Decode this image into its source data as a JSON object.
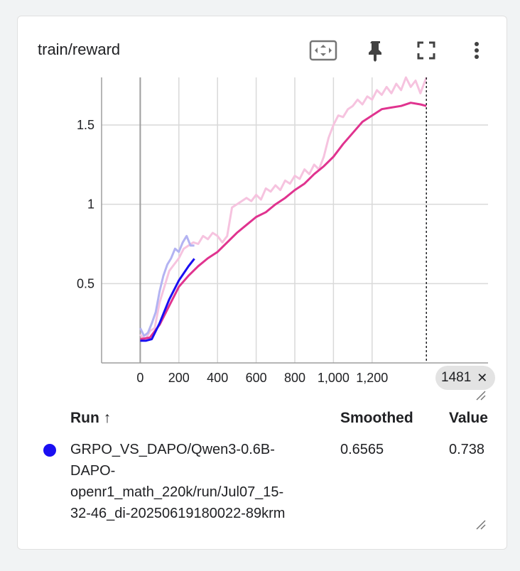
{
  "card": {
    "title": "train/reward",
    "icons": [
      "fit-domain-icon",
      "pin-icon",
      "fullscreen-icon",
      "more-vert-icon"
    ]
  },
  "chart_data": {
    "type": "line",
    "title": "train/reward",
    "xlabel": "",
    "ylabel": "",
    "xlim": [
      -200,
      1800
    ],
    "ylim": [
      0,
      1.8
    ],
    "x_ticks": [
      "0",
      "200",
      "400",
      "600",
      "800",
      "1,000",
      "1,200"
    ],
    "y_ticks": [
      "0.5",
      "1",
      "1.5"
    ],
    "grid": true,
    "hover_step": 1481,
    "series": [
      {
        "name": "GRPO_VS_DAPO/Qwen3-0.6B-DAPO-openr1_math_220k/run/Jul07_15-32-46_di-20250619180022-89krm",
        "color": "#1a0ff2",
        "raw_color": "#b3b3f2",
        "smoothed": [
          [
            0,
            0.14
          ],
          [
            30,
            0.14
          ],
          [
            60,
            0.15
          ],
          [
            100,
            0.25
          ],
          [
            150,
            0.4
          ],
          [
            200,
            0.52
          ],
          [
            250,
            0.61
          ],
          [
            280,
            0.657
          ]
        ],
        "raw": [
          [
            0,
            0.22
          ],
          [
            20,
            0.17
          ],
          [
            40,
            0.19
          ],
          [
            60,
            0.25
          ],
          [
            80,
            0.32
          ],
          [
            100,
            0.45
          ],
          [
            120,
            0.55
          ],
          [
            140,
            0.62
          ],
          [
            160,
            0.66
          ],
          [
            180,
            0.72
          ],
          [
            200,
            0.7
          ],
          [
            220,
            0.76
          ],
          [
            240,
            0.8
          ],
          [
            260,
            0.74
          ],
          [
            280,
            0.74
          ]
        ]
      },
      {
        "name": "",
        "color": "#e0338f",
        "raw_color": "#f6c3df",
        "smoothed": [
          [
            0,
            0.15
          ],
          [
            50,
            0.16
          ],
          [
            100,
            0.24
          ],
          [
            150,
            0.36
          ],
          [
            200,
            0.48
          ],
          [
            250,
            0.55
          ],
          [
            300,
            0.61
          ],
          [
            350,
            0.66
          ],
          [
            400,
            0.7
          ],
          [
            450,
            0.76
          ],
          [
            500,
            0.82
          ],
          [
            550,
            0.87
          ],
          [
            600,
            0.92
          ],
          [
            650,
            0.95
          ],
          [
            700,
            1.0
          ],
          [
            750,
            1.04
          ],
          [
            800,
            1.09
          ],
          [
            850,
            1.13
          ],
          [
            900,
            1.19
          ],
          [
            950,
            1.24
          ],
          [
            1000,
            1.3
          ],
          [
            1050,
            1.38
          ],
          [
            1100,
            1.45
          ],
          [
            1150,
            1.52
          ],
          [
            1200,
            1.56
          ],
          [
            1250,
            1.6
          ],
          [
            1300,
            1.61
          ],
          [
            1350,
            1.62
          ],
          [
            1400,
            1.64
          ],
          [
            1450,
            1.63
          ],
          [
            1481,
            1.62
          ]
        ],
        "raw": [
          [
            0,
            0.18
          ],
          [
            25,
            0.14
          ],
          [
            50,
            0.2
          ],
          [
            75,
            0.22
          ],
          [
            100,
            0.38
          ],
          [
            125,
            0.48
          ],
          [
            150,
            0.58
          ],
          [
            175,
            0.62
          ],
          [
            200,
            0.66
          ],
          [
            225,
            0.72
          ],
          [
            250,
            0.74
          ],
          [
            275,
            0.76
          ],
          [
            300,
            0.75
          ],
          [
            325,
            0.8
          ],
          [
            350,
            0.78
          ],
          [
            375,
            0.82
          ],
          [
            400,
            0.8
          ],
          [
            425,
            0.76
          ],
          [
            450,
            0.8
          ],
          [
            475,
            0.98
          ],
          [
            500,
            1.0
          ],
          [
            525,
            1.02
          ],
          [
            550,
            1.04
          ],
          [
            575,
            1.02
          ],
          [
            600,
            1.06
          ],
          [
            625,
            1.03
          ],
          [
            650,
            1.1
          ],
          [
            675,
            1.08
          ],
          [
            700,
            1.12
          ],
          [
            725,
            1.09
          ],
          [
            750,
            1.15
          ],
          [
            775,
            1.13
          ],
          [
            800,
            1.18
          ],
          [
            825,
            1.16
          ],
          [
            850,
            1.22
          ],
          [
            875,
            1.19
          ],
          [
            900,
            1.25
          ],
          [
            925,
            1.22
          ],
          [
            950,
            1.3
          ],
          [
            975,
            1.42
          ],
          [
            1000,
            1.5
          ],
          [
            1025,
            1.56
          ],
          [
            1050,
            1.55
          ],
          [
            1075,
            1.6
          ],
          [
            1100,
            1.62
          ],
          [
            1125,
            1.66
          ],
          [
            1150,
            1.63
          ],
          [
            1175,
            1.68
          ],
          [
            1200,
            1.66
          ],
          [
            1225,
            1.72
          ],
          [
            1250,
            1.69
          ],
          [
            1275,
            1.74
          ],
          [
            1300,
            1.7
          ],
          [
            1325,
            1.76
          ],
          [
            1350,
            1.72
          ],
          [
            1375,
            1.8
          ],
          [
            1400,
            1.74
          ],
          [
            1425,
            1.78
          ],
          [
            1450,
            1.7
          ],
          [
            1481,
            1.8
          ]
        ]
      }
    ]
  },
  "table": {
    "headers": {
      "run": "Run ↑",
      "smoothed": "Smoothed",
      "value": "Value"
    },
    "rows": [
      {
        "run_lines": [
          "GRPO_VS_DAPO/Qwen3-0.6B-",
          "DAPO-",
          "openr1_math_220k/run/Jul07_15-",
          "32-46_di-20250619180022-89krm"
        ],
        "smoothed": "0.6565",
        "value": "0.738",
        "color": "#1a0ff2"
      }
    ]
  }
}
